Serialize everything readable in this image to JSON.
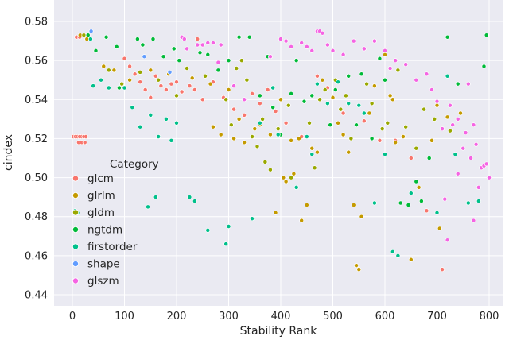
{
  "chart_data": {
    "type": "scatter",
    "title": "",
    "xlabel": "Stability Rank",
    "ylabel": "cindex",
    "xlim": [
      -20,
      820
    ],
    "ylim": [
      0.435,
      0.584
    ],
    "xticks": [
      0,
      100,
      200,
      300,
      400,
      500,
      600,
      700,
      800
    ],
    "yticks": [
      0.44,
      0.46,
      0.48,
      0.5,
      0.52,
      0.54,
      0.56,
      0.58
    ],
    "ytick_labels": [
      "0.44",
      "0.46",
      "0.48",
      "0.50",
      "0.52",
      "0.54",
      "0.56",
      "0.58"
    ],
    "grid": true,
    "legend": {
      "title": "Category",
      "placement": "lower-left"
    },
    "colors": {
      "background": "#EAEAF2",
      "grid": "#FFFFFF"
    },
    "series": [
      {
        "name": "glcm",
        "color": "#F8766D",
        "points": [
          [
            2,
            0.521
          ],
          [
            6,
            0.521
          ],
          [
            10,
            0.521
          ],
          [
            14,
            0.521
          ],
          [
            18,
            0.521
          ],
          [
            22,
            0.521
          ],
          [
            26,
            0.521
          ],
          [
            12,
            0.518
          ],
          [
            18,
            0.518
          ],
          [
            24,
            0.518
          ],
          [
            8,
            0.572
          ],
          [
            14,
            0.572
          ],
          [
            20,
            0.573
          ],
          [
            100,
            0.561
          ],
          [
            110,
            0.557
          ],
          [
            120,
            0.553
          ],
          [
            130,
            0.549
          ],
          [
            140,
            0.545
          ],
          [
            150,
            0.541
          ],
          [
            160,
            0.552
          ],
          [
            170,
            0.547
          ],
          [
            180,
            0.545
          ],
          [
            190,
            0.548
          ],
          [
            200,
            0.549
          ],
          [
            210,
            0.544
          ],
          [
            225,
            0.547
          ],
          [
            235,
            0.545
          ],
          [
            240,
            0.571
          ],
          [
            250,
            0.54
          ],
          [
            270,
            0.549
          ],
          [
            290,
            0.541
          ],
          [
            310,
            0.535
          ],
          [
            330,
            0.532
          ],
          [
            345,
            0.543
          ],
          [
            360,
            0.538
          ],
          [
            375,
            0.545
          ],
          [
            390,
            0.534
          ],
          [
            410,
            0.528
          ],
          [
            440,
            0.521
          ],
          [
            470,
            0.552
          ],
          [
            490,
            0.546
          ],
          [
            520,
            0.533
          ],
          [
            560,
            0.529
          ],
          [
            590,
            0.519
          ],
          [
            620,
            0.519
          ],
          [
            650,
            0.51
          ],
          [
            680,
            0.483
          ],
          [
            710,
            0.453
          ]
        ]
      },
      {
        "name": "glrlm",
        "color": "#C49A00",
        "points": [
          [
            15,
            0.573
          ],
          [
            28,
            0.571
          ],
          [
            60,
            0.557
          ],
          [
            80,
            0.555
          ],
          [
            110,
            0.55
          ],
          [
            150,
            0.555
          ],
          [
            185,
            0.553
          ],
          [
            230,
            0.551
          ],
          [
            265,
            0.548
          ],
          [
            270,
            0.526
          ],
          [
            285,
            0.522
          ],
          [
            300,
            0.545
          ],
          [
            310,
            0.52
          ],
          [
            320,
            0.53
          ],
          [
            330,
            0.518
          ],
          [
            350,
            0.525
          ],
          [
            360,
            0.527
          ],
          [
            380,
            0.522
          ],
          [
            390,
            0.482
          ],
          [
            400,
            0.54
          ],
          [
            405,
            0.5
          ],
          [
            410,
            0.498
          ],
          [
            420,
            0.519
          ],
          [
            425,
            0.502
          ],
          [
            435,
            0.52
          ],
          [
            440,
            0.478
          ],
          [
            450,
            0.486
          ],
          [
            460,
            0.515
          ],
          [
            470,
            0.513
          ],
          [
            480,
            0.55
          ],
          [
            500,
            0.541
          ],
          [
            510,
            0.528
          ],
          [
            520,
            0.522
          ],
          [
            530,
            0.513
          ],
          [
            540,
            0.486
          ],
          [
            545,
            0.455
          ],
          [
            550,
            0.453
          ],
          [
            555,
            0.48
          ],
          [
            570,
            0.533
          ],
          [
            580,
            0.547
          ],
          [
            600,
            0.563
          ],
          [
            610,
            0.542
          ],
          [
            615,
            0.54
          ],
          [
            620,
            0.518
          ],
          [
            635,
            0.521
          ],
          [
            650,
            0.458
          ],
          [
            665,
            0.495
          ],
          [
            690,
            0.519
          ],
          [
            700,
            0.537
          ],
          [
            705,
            0.474
          ],
          [
            720,
            0.531
          ],
          [
            745,
            0.533
          ]
        ]
      },
      {
        "name": "gldm",
        "color": "#99A800",
        "points": [
          [
            22,
            0.573
          ],
          [
            70,
            0.555
          ],
          [
            95,
            0.548
          ],
          [
            130,
            0.554
          ],
          [
            165,
            0.55
          ],
          [
            200,
            0.542
          ],
          [
            220,
            0.556
          ],
          [
            255,
            0.552
          ],
          [
            295,
            0.54
          ],
          [
            305,
            0.527
          ],
          [
            315,
            0.556
          ],
          [
            325,
            0.56
          ],
          [
            335,
            0.55
          ],
          [
            345,
            0.521
          ],
          [
            355,
            0.516
          ],
          [
            365,
            0.53
          ],
          [
            370,
            0.508
          ],
          [
            380,
            0.504
          ],
          [
            395,
            0.525
          ],
          [
            415,
            0.537
          ],
          [
            420,
            0.5
          ],
          [
            430,
            0.495
          ],
          [
            455,
            0.528
          ],
          [
            465,
            0.505
          ],
          [
            475,
            0.54
          ],
          [
            485,
            0.545
          ],
          [
            505,
            0.55
          ],
          [
            515,
            0.535
          ],
          [
            525,
            0.542
          ],
          [
            535,
            0.52
          ],
          [
            565,
            0.548
          ],
          [
            575,
            0.538
          ],
          [
            595,
            0.525
          ],
          [
            605,
            0.528
          ],
          [
            625,
            0.555
          ],
          [
            640,
            0.526
          ],
          [
            660,
            0.515
          ],
          [
            675,
            0.535
          ],
          [
            695,
            0.53
          ],
          [
            725,
            0.524
          ]
        ]
      },
      {
        "name": "ngtdm",
        "color": "#00BA38",
        "points": [
          [
            30,
            0.573
          ],
          [
            45,
            0.565
          ],
          [
            65,
            0.572
          ],
          [
            85,
            0.567
          ],
          [
            90,
            0.546
          ],
          [
            125,
            0.571
          ],
          [
            135,
            0.568
          ],
          [
            155,
            0.571
          ],
          [
            175,
            0.562
          ],
          [
            195,
            0.566
          ],
          [
            205,
            0.56
          ],
          [
            245,
            0.564
          ],
          [
            260,
            0.563
          ],
          [
            280,
            0.555
          ],
          [
            300,
            0.56
          ],
          [
            320,
            0.572
          ],
          [
            340,
            0.572
          ],
          [
            360,
            0.542
          ],
          [
            375,
            0.562
          ],
          [
            385,
            0.536
          ],
          [
            400,
            0.522
          ],
          [
            420,
            0.543
          ],
          [
            430,
            0.56
          ],
          [
            445,
            0.539
          ],
          [
            460,
            0.542
          ],
          [
            495,
            0.527
          ],
          [
            505,
            0.545
          ],
          [
            530,
            0.552
          ],
          [
            545,
            0.527
          ],
          [
            555,
            0.553
          ],
          [
            575,
            0.52
          ],
          [
            590,
            0.561
          ],
          [
            600,
            0.55
          ],
          [
            630,
            0.487
          ],
          [
            645,
            0.486
          ],
          [
            660,
            0.498
          ],
          [
            670,
            0.488
          ],
          [
            685,
            0.51
          ],
          [
            720,
            0.572
          ],
          [
            740,
            0.548
          ],
          [
            790,
            0.557
          ],
          [
            795,
            0.573
          ]
        ]
      },
      {
        "name": "firstorder",
        "color": "#00C08B",
        "points": [
          [
            5,
            0.483
          ],
          [
            10,
            0.482
          ],
          [
            35,
            0.571
          ],
          [
            40,
            0.547
          ],
          [
            55,
            0.55
          ],
          [
            70,
            0.546
          ],
          [
            100,
            0.546
          ],
          [
            115,
            0.536
          ],
          [
            130,
            0.526
          ],
          [
            145,
            0.485
          ],
          [
            150,
            0.532
          ],
          [
            160,
            0.49
          ],
          [
            165,
            0.521
          ],
          [
            180,
            0.53
          ],
          [
            190,
            0.519
          ],
          [
            200,
            0.528
          ],
          [
            225,
            0.49
          ],
          [
            235,
            0.488
          ],
          [
            260,
            0.473
          ],
          [
            295,
            0.466
          ],
          [
            300,
            0.475
          ],
          [
            345,
            0.479
          ],
          [
            360,
            0.528
          ],
          [
            385,
            0.546
          ],
          [
            395,
            0.522
          ],
          [
            430,
            0.495
          ],
          [
            450,
            0.521
          ],
          [
            460,
            0.512
          ],
          [
            470,
            0.548
          ],
          [
            490,
            0.538
          ],
          [
            510,
            0.549
          ],
          [
            530,
            0.538
          ],
          [
            550,
            0.537
          ],
          [
            560,
            0.533
          ],
          [
            580,
            0.487
          ],
          [
            600,
            0.512
          ],
          [
            615,
            0.462
          ],
          [
            625,
            0.46
          ],
          [
            650,
            0.492
          ],
          [
            700,
            0.482
          ],
          [
            720,
            0.552
          ],
          [
            735,
            0.512
          ],
          [
            760,
            0.487
          ],
          [
            780,
            0.488
          ]
        ]
      },
      {
        "name": "shape",
        "color": "#619CFF",
        "points": [
          [
            36,
            0.575
          ],
          [
            138,
            0.562
          ],
          [
            187,
            0.554
          ]
        ]
      },
      {
        "name": "glszm",
        "color": "#F564E3",
        "points": [
          [
            210,
            0.572
          ],
          [
            215,
            0.571
          ],
          [
            220,
            0.566
          ],
          [
            240,
            0.568
          ],
          [
            250,
            0.568
          ],
          [
            260,
            0.569
          ],
          [
            270,
            0.569
          ],
          [
            280,
            0.559
          ],
          [
            285,
            0.568
          ],
          [
            310,
            0.547
          ],
          [
            330,
            0.54
          ],
          [
            380,
            0.562
          ],
          [
            400,
            0.571
          ],
          [
            410,
            0.57
          ],
          [
            420,
            0.567
          ],
          [
            440,
            0.569
          ],
          [
            450,
            0.567
          ],
          [
            460,
            0.565
          ],
          [
            470,
            0.575
          ],
          [
            475,
            0.575
          ],
          [
            480,
            0.574
          ],
          [
            490,
            0.568
          ],
          [
            500,
            0.565
          ],
          [
            520,
            0.563
          ],
          [
            540,
            0.57
          ],
          [
            560,
            0.566
          ],
          [
            580,
            0.57
          ],
          [
            600,
            0.565
          ],
          [
            610,
            0.556
          ],
          [
            620,
            0.56
          ],
          [
            640,
            0.558
          ],
          [
            660,
            0.55
          ],
          [
            680,
            0.553
          ],
          [
            690,
            0.545
          ],
          [
            700,
            0.539
          ],
          [
            710,
            0.525
          ],
          [
            715,
            0.489
          ],
          [
            725,
            0.537
          ],
          [
            730,
            0.527
          ],
          [
            740,
            0.53
          ],
          [
            750,
            0.515
          ],
          [
            755,
            0.523
          ],
          [
            760,
            0.548
          ],
          [
            765,
            0.51
          ],
          [
            770,
            0.527
          ],
          [
            775,
            0.517
          ],
          [
            780,
            0.495
          ],
          [
            785,
            0.505
          ],
          [
            790,
            0.506
          ],
          [
            795,
            0.507
          ],
          [
            800,
            0.5
          ],
          [
            720,
            0.468
          ],
          [
            740,
            0.502
          ],
          [
            770,
            0.478
          ]
        ]
      }
    ]
  }
}
